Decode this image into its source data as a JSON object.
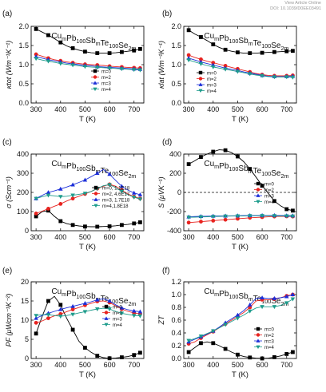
{
  "header": {
    "line1": "View Article Online",
    "line2": "DOI: 10.1039/D0EE03491"
  },
  "legend_markers": {
    "m=0": "square",
    "m=2": "circle",
    "m=3": "triangle-up",
    "m=4": "triangle-down",
    "m=0, 1.1E18": "square",
    "m=2, 4.6E17": "circle",
    "m=3, 1.7E18": "triangle-up",
    "m=4,1.8E18": "triangle-down"
  },
  "colors": {
    "m0": "#000000",
    "m2": "#e8231f",
    "m3": "#1c2fd9",
    "m4": "#1e9c8c"
  },
  "chart_data": [
    {
      "panel": "(a)",
      "type": "line",
      "formula": "CumPb100SbmTe100Se2m",
      "ylabel": "κtot (Wm⁻¹K⁻¹)",
      "xlabel": "T (K)",
      "xlim": [
        280,
        740
      ],
      "ylim": [
        0,
        2.0
      ],
      "xticks": [
        "300",
        "400",
        "500",
        "600",
        "700"
      ],
      "yticks": [
        "0.0",
        "0.5",
        "1.0",
        "1.5",
        "2.0"
      ],
      "legend": "lower-right",
      "x": [
        300,
        325,
        350,
        375,
        400,
        425,
        450,
        475,
        500,
        525,
        550,
        575,
        600,
        625,
        650,
        675,
        700,
        725
      ],
      "series": [
        {
          "name": "m=0",
          "values": [
            1.93,
            1.85,
            1.77,
            1.68,
            1.58,
            1.49,
            1.43,
            1.38,
            1.34,
            1.31,
            1.3,
            1.3,
            1.3,
            1.31,
            1.33,
            1.35,
            1.37,
            1.41
          ]
        },
        {
          "name": "m=2",
          "values": [
            1.27,
            1.22,
            1.17,
            1.13,
            1.1,
            1.07,
            1.05,
            1.03,
            1.01,
            1.0,
            0.99,
            0.98,
            0.96,
            0.95,
            0.94,
            0.93,
            0.92,
            0.91
          ]
        },
        {
          "name": "m=3",
          "values": [
            1.21,
            1.17,
            1.13,
            1.1,
            1.07,
            1.04,
            1.02,
            1.0,
            0.98,
            0.97,
            0.95,
            0.94,
            0.93,
            0.92,
            0.91,
            0.9,
            0.89,
            0.88
          ]
        },
        {
          "name": "m=4",
          "values": [
            1.16,
            1.12,
            1.09,
            1.06,
            1.03,
            1.01,
            0.99,
            0.97,
            0.95,
            0.94,
            0.93,
            0.92,
            0.91,
            0.9,
            0.89,
            0.88,
            0.87,
            0.86
          ]
        }
      ]
    },
    {
      "panel": "(b)",
      "type": "line",
      "formula": "CumPb100SbmTe100Se2m",
      "ylabel": "κlat (Wm⁻¹K⁻¹)",
      "xlabel": "T (K)",
      "xlim": [
        280,
        740
      ],
      "ylim": [
        0,
        2.0
      ],
      "xticks": [
        "300",
        "400",
        "500",
        "600",
        "700"
      ],
      "yticks": [
        "0.0",
        "0.5",
        "1.0",
        "1.5",
        "2.0"
      ],
      "legend": "lower-left",
      "x": [
        300,
        325,
        350,
        375,
        400,
        425,
        450,
        475,
        500,
        525,
        550,
        575,
        600,
        625,
        650,
        675,
        700,
        725
      ],
      "series": [
        {
          "name": "m=0",
          "values": [
            1.9,
            1.8,
            1.72,
            1.63,
            1.53,
            1.45,
            1.39,
            1.35,
            1.32,
            1.3,
            1.3,
            1.3,
            1.31,
            1.32,
            1.33,
            1.34,
            1.35,
            1.36
          ]
        },
        {
          "name": "m=2",
          "values": [
            1.25,
            1.19,
            1.14,
            1.09,
            1.05,
            1.01,
            0.97,
            0.93,
            0.89,
            0.85,
            0.81,
            0.77,
            0.74,
            0.72,
            0.71,
            0.71,
            0.71,
            0.72
          ]
        },
        {
          "name": "m=3",
          "values": [
            1.17,
            1.12,
            1.07,
            1.03,
            0.99,
            0.95,
            0.91,
            0.88,
            0.85,
            0.81,
            0.78,
            0.75,
            0.72,
            0.7,
            0.69,
            0.69,
            0.69,
            0.7
          ]
        },
        {
          "name": "m=4",
          "values": [
            1.12,
            1.07,
            1.02,
            0.98,
            0.94,
            0.91,
            0.88,
            0.85,
            0.82,
            0.79,
            0.76,
            0.73,
            0.71,
            0.69,
            0.68,
            0.68,
            0.68,
            0.67
          ]
        }
      ]
    },
    {
      "panel": "(c)",
      "type": "line",
      "formula": "CumPb100SbmTe100Se2m",
      "ylabel": "σ (Scm⁻¹)",
      "xlabel": "T (K)",
      "xlim": [
        280,
        740
      ],
      "ylim": [
        0,
        400
      ],
      "xticks": [
        "300",
        "400",
        "500",
        "600",
        "700"
      ],
      "yticks": [
        "0",
        "100",
        "200",
        "300",
        "400"
      ],
      "legend": "lower-right",
      "x": [
        300,
        325,
        350,
        375,
        400,
        425,
        450,
        475,
        500,
        525,
        550,
        575,
        600,
        625,
        650,
        675,
        700,
        725
      ],
      "series": [
        {
          "name": "m=0, 1.1E18",
          "values": [
            75,
            100,
            105,
            75,
            50,
            37,
            30,
            25,
            22,
            21,
            21,
            22,
            23,
            26,
            30,
            33,
            38,
            44
          ]
        },
        {
          "name": "m=2, 4.6E17",
          "values": [
            90,
            102,
            115,
            128,
            140,
            155,
            168,
            180,
            192,
            205,
            220,
            232,
            242,
            232,
            212,
            192,
            178,
            168
          ]
        },
        {
          "name": "m=3, 1.7E18",
          "values": [
            168,
            185,
            200,
            208,
            218,
            228,
            240,
            252,
            265,
            282,
            300,
            320,
            295,
            262,
            232,
            212,
            197,
            188
          ]
        },
        {
          "name": "m=4,1.8E18",
          "values": [
            168,
            178,
            185,
            182,
            178,
            180,
            185,
            190,
            195,
            205,
            220,
            235,
            240,
            225,
            205,
            188,
            175,
            165
          ]
        }
      ]
    },
    {
      "panel": "(d)",
      "type": "line",
      "formula": "CumPb100SbmTe100Se2m",
      "ylabel": "S (μVK⁻¹)",
      "xlabel": "T (K)",
      "xlim": [
        280,
        740
      ],
      "ylim": [
        -400,
        400
      ],
      "xticks": [
        "300",
        "400",
        "500",
        "600",
        "700"
      ],
      "yticks": [
        "-400",
        "-200",
        "0",
        "200",
        "400"
      ],
      "legend": "right",
      "x": [
        300,
        325,
        350,
        375,
        400,
        425,
        450,
        475,
        500,
        525,
        550,
        575,
        600,
        625,
        650,
        675,
        700,
        725
      ],
      "series": [
        {
          "name": "m=0",
          "values": [
            295,
            330,
            370,
            400,
            425,
            445,
            440,
            415,
            375,
            320,
            245,
            160,
            70,
            -10,
            -90,
            -140,
            -175,
            -190
          ]
        },
        {
          "name": "m=2",
          "values": [
            -315,
            -310,
            -305,
            -300,
            -295,
            -290,
            -285,
            -280,
            -275,
            -270,
            -265,
            -262,
            -258,
            -255,
            -252,
            -250,
            -250,
            -252
          ]
        },
        {
          "name": "m=3",
          "values": [
            -255,
            -252,
            -250,
            -248,
            -247,
            -246,
            -245,
            -244,
            -243,
            -242,
            -241,
            -240,
            -240,
            -240,
            -240,
            -241,
            -242,
            -243
          ]
        },
        {
          "name": "m=4",
          "values": [
            -260,
            -258,
            -256,
            -254,
            -252,
            -250,
            -248,
            -247,
            -246,
            -245,
            -244,
            -243,
            -243,
            -243,
            -244,
            -245,
            -246,
            -248
          ]
        }
      ]
    },
    {
      "panel": "(e)",
      "type": "line",
      "formula": "CumPb100SbmTe100Se2m",
      "ylabel": "PF (μWcm⁻¹K⁻²)",
      "xlabel": "T (K)",
      "xlim": [
        280,
        740
      ],
      "ylim": [
        0,
        20
      ],
      "xticks": [
        "300",
        "400",
        "500",
        "600",
        "700"
      ],
      "yticks": [
        "0",
        "5",
        "10",
        "15",
        "20"
      ],
      "legend": "right",
      "x": [
        300,
        325,
        350,
        375,
        400,
        425,
        450,
        475,
        500,
        525,
        550,
        575,
        600,
        625,
        650,
        675,
        700,
        725
      ],
      "series": [
        {
          "name": "m=0",
          "values": [
            6.5,
            11.0,
            15.0,
            16.2,
            14.0,
            10.5,
            7.5,
            4.5,
            2.8,
            1.6,
            0.7,
            0.2,
            0.05,
            0.1,
            0.3,
            0.5,
            0.9,
            1.5
          ]
        },
        {
          "name": "m=2",
          "values": [
            9.3,
            9.8,
            10.5,
            11.1,
            11.6,
            12.2,
            12.8,
            13.3,
            13.9,
            14.4,
            14.9,
            15.0,
            14.6,
            13.7,
            12.9,
            12.3,
            11.9,
            11.6
          ]
        },
        {
          "name": "m=3",
          "values": [
            10.5,
            11.2,
            11.8,
            12.3,
            12.8,
            13.2,
            13.6,
            14.0,
            14.4,
            14.8,
            15.3,
            15.6,
            15.0,
            14.0,
            13.2,
            12.7,
            12.4,
            12.2
          ]
        },
        {
          "name": "m=4",
          "values": [
            11.2,
            11.4,
            11.4,
            11.2,
            11.0,
            11.2,
            11.5,
            11.9,
            12.2,
            12.6,
            12.9,
            13.1,
            12.9,
            12.3,
            11.8,
            11.5,
            11.2,
            11.1
          ]
        }
      ]
    },
    {
      "panel": "(f)",
      "type": "line",
      "formula": "CumPb100SbmTe100Se2m",
      "ylabel": "ZT",
      "xlabel": "T (K)",
      "xlim": [
        280,
        740
      ],
      "ylim": [
        0,
        1.2
      ],
      "xticks": [
        "300",
        "400",
        "500",
        "600",
        "700"
      ],
      "yticks": [
        "0.0",
        "0.2",
        "0.4",
        "0.6",
        "0.8",
        "1.0",
        "1.2"
      ],
      "legend": "lower-right",
      "x": [
        300,
        325,
        350,
        375,
        400,
        425,
        450,
        475,
        500,
        525,
        550,
        575,
        600,
        625,
        650,
        675,
        700,
        725
      ],
      "series": [
        {
          "name": "m=0",
          "values": [
            0.1,
            0.17,
            0.24,
            0.26,
            0.24,
            0.2,
            0.15,
            0.1,
            0.06,
            0.03,
            0.015,
            0.005,
            0.0,
            0.005,
            0.02,
            0.04,
            0.07,
            0.1
          ]
        },
        {
          "name": "m=2",
          "values": [
            0.23,
            0.26,
            0.32,
            0.37,
            0.42,
            0.48,
            0.54,
            0.6,
            0.66,
            0.72,
            0.8,
            0.9,
            0.92,
            0.92,
            0.93,
            0.95,
            0.98,
            1.0
          ]
        },
        {
          "name": "m=3",
          "values": [
            0.26,
            0.3,
            0.34,
            0.38,
            0.43,
            0.49,
            0.56,
            0.62,
            0.68,
            0.75,
            0.84,
            0.94,
            0.95,
            0.94,
            0.94,
            0.95,
            0.97,
            1.0
          ]
        },
        {
          "name": "m=4",
          "values": [
            0.28,
            0.31,
            0.35,
            0.39,
            0.43,
            0.48,
            0.53,
            0.58,
            0.63,
            0.68,
            0.74,
            0.79,
            0.81,
            0.81,
            0.81,
            0.83,
            0.87,
            0.93
          ]
        }
      ]
    }
  ]
}
